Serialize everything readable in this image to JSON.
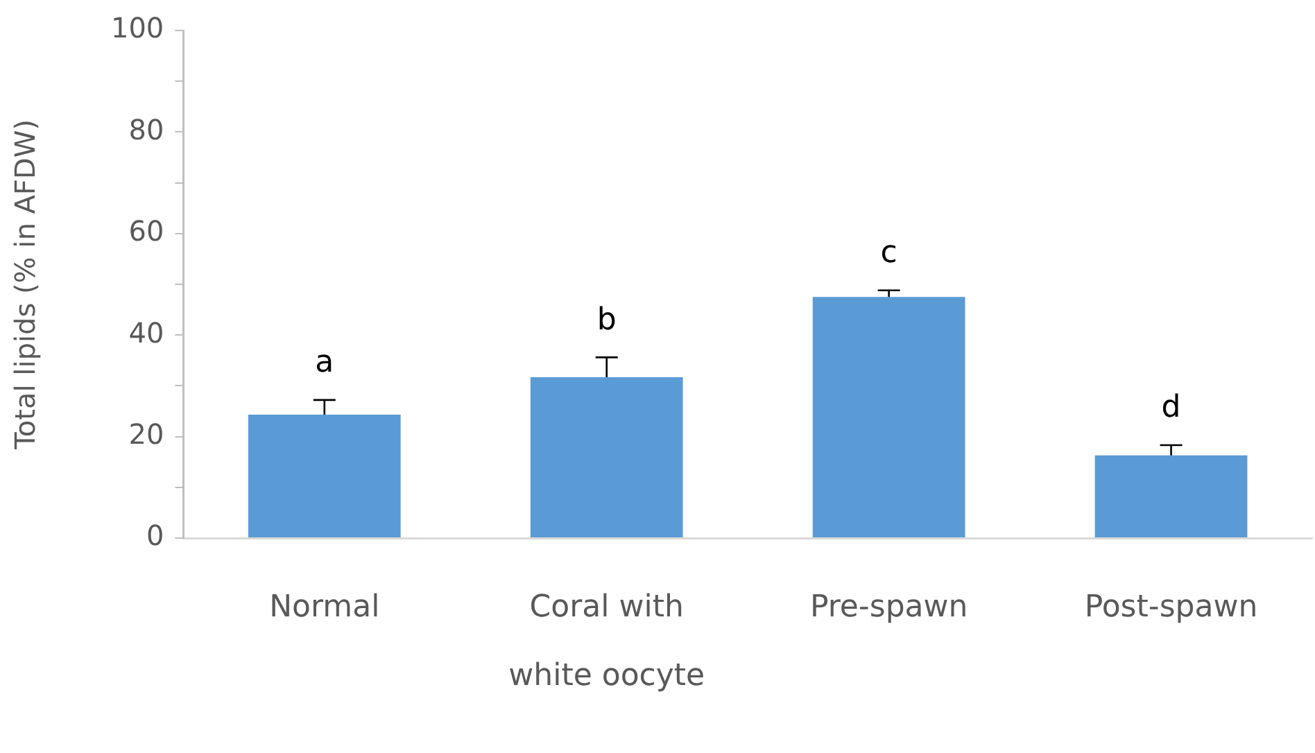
{
  "chart_data": {
    "type": "bar",
    "ylabel": "Total lipids (% in AFDW)",
    "categories": [
      "Normal",
      "Coral with white oocyte",
      "Pre-spawn",
      "Post-spawn"
    ],
    "values": [
      24.3,
      31.7,
      47.5,
      16.3
    ],
    "color": "#5b9bd5",
    "errors": [
      [
        24.3,
        27.2
      ],
      [
        31.7,
        35.6
      ],
      [
        47.5,
        48.8
      ],
      [
        16.3,
        18.3
      ]
    ],
    "ylim": [
      0,
      100
    ],
    "yticks": [
      0,
      {
        "value": 10,
        "label": null
      },
      20,
      {
        "value": 30,
        "label": null
      },
      40,
      {
        "value": 50,
        "label": null
      },
      60,
      {
        "value": 70,
        "label": null
      },
      80,
      {
        "value": 90,
        "label": null
      },
      100
    ],
    "grid": false,
    "legend": false,
    "annotations": [
      "a",
      "b",
      "c",
      "d"
    ]
  }
}
